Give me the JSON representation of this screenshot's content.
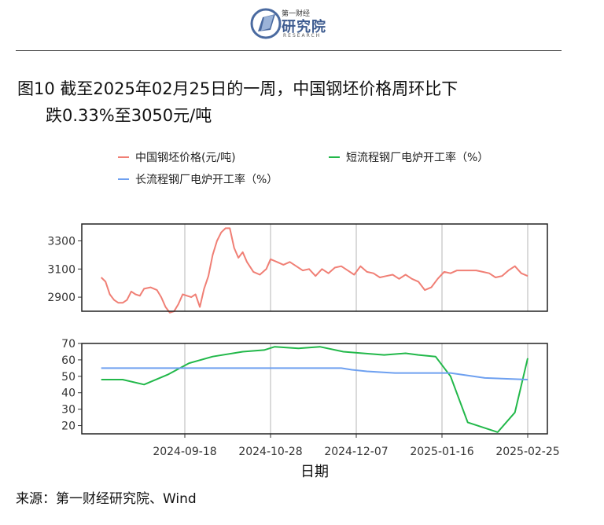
{
  "header": {
    "logo_small": "第一财经",
    "logo_main": "研究院",
    "logo_sub": "RESEARCH"
  },
  "title": {
    "line1": "图10  截至2025年02月25日的一周，中国钢坯价格周环比下",
    "line2": "跌0.33%至3050元/吨"
  },
  "source": "来源：第一财经研究院、Wind",
  "colors": {
    "price": "#f07f75",
    "short": "#22b84a",
    "long": "#6ea0f0"
  },
  "chart_data": {
    "type": "line",
    "xlabel": "日期",
    "x_ticks": [
      "2024-09-18",
      "2024-10-28",
      "2024-12-07",
      "2025-01-16",
      "2025-02-25"
    ],
    "legend": [
      {
        "name": "中国钢坯价格(元/吨)",
        "color": "#f07f75"
      },
      {
        "name": "短流程钢厂电炉开工率（%）",
        "color": "#22b84a"
      },
      {
        "name": "长流程钢厂电炉开工率（%）",
        "color": "#6ea0f0"
      }
    ],
    "panels": [
      {
        "name": "price",
        "yticks": [
          2900,
          3100,
          3300
        ],
        "ylim": [
          2800,
          3420
        ],
        "series": [
          {
            "name": "中国钢坯价格(元/吨)",
            "color": "#f07f75",
            "points": [
              [
                "2024-08-10",
                3040
              ],
              [
                "2024-08-12",
                3010
              ],
              [
                "2024-08-14",
                2920
              ],
              [
                "2024-08-16",
                2880
              ],
              [
                "2024-08-18",
                2860
              ],
              [
                "2024-08-20",
                2860
              ],
              [
                "2024-08-22",
                2880
              ],
              [
                "2024-08-24",
                2940
              ],
              [
                "2024-08-26",
                2920
              ],
              [
                "2024-08-28",
                2910
              ],
              [
                "2024-08-30",
                2960
              ],
              [
                "2024-09-02",
                2970
              ],
              [
                "2024-09-05",
                2950
              ],
              [
                "2024-09-07",
                2900
              ],
              [
                "2024-09-09",
                2830
              ],
              [
                "2024-09-11",
                2790
              ],
              [
                "2024-09-13",
                2800
              ],
              [
                "2024-09-15",
                2850
              ],
              [
                "2024-09-17",
                2920
              ],
              [
                "2024-09-19",
                2910
              ],
              [
                "2024-09-21",
                2900
              ],
              [
                "2024-09-23",
                2920
              ],
              [
                "2024-09-25",
                2830
              ],
              [
                "2024-09-27",
                2960
              ],
              [
                "2024-09-29",
                3050
              ],
              [
                "2024-10-01",
                3200
              ],
              [
                "2024-10-03",
                3300
              ],
              [
                "2024-10-05",
                3360
              ],
              [
                "2024-10-07",
                3390
              ],
              [
                "2024-10-09",
                3390
              ],
              [
                "2024-10-11",
                3250
              ],
              [
                "2024-10-13",
                3180
              ],
              [
                "2024-10-15",
                3220
              ],
              [
                "2024-10-17",
                3150
              ],
              [
                "2024-10-20",
                3080
              ],
              [
                "2024-10-23",
                3060
              ],
              [
                "2024-10-26",
                3100
              ],
              [
                "2024-10-28",
                3170
              ],
              [
                "2024-10-31",
                3150
              ],
              [
                "2024-11-03",
                3130
              ],
              [
                "2024-11-06",
                3150
              ],
              [
                "2024-11-09",
                3120
              ],
              [
                "2024-11-12",
                3090
              ],
              [
                "2024-11-15",
                3100
              ],
              [
                "2024-11-18",
                3050
              ],
              [
                "2024-11-21",
                3100
              ],
              [
                "2024-11-24",
                3070
              ],
              [
                "2024-11-27",
                3110
              ],
              [
                "2024-11-30",
                3120
              ],
              [
                "2024-12-03",
                3090
              ],
              [
                "2024-12-06",
                3060
              ],
              [
                "2024-12-09",
                3120
              ],
              [
                "2024-12-12",
                3080
              ],
              [
                "2024-12-15",
                3070
              ],
              [
                "2024-12-18",
                3040
              ],
              [
                "2024-12-21",
                3050
              ],
              [
                "2024-12-24",
                3060
              ],
              [
                "2024-12-27",
                3030
              ],
              [
                "2024-12-30",
                3060
              ],
              [
                "2025-01-02",
                3030
              ],
              [
                "2025-01-05",
                3010
              ],
              [
                "2025-01-08",
                2950
              ],
              [
                "2025-01-11",
                2970
              ],
              [
                "2025-01-14",
                3030
              ],
              [
                "2025-01-17",
                3080
              ],
              [
                "2025-01-20",
                3070
              ],
              [
                "2025-01-23",
                3090
              ],
              [
                "2025-01-26",
                3090
              ],
              [
                "2025-01-29",
                3090
              ],
              [
                "2025-02-01",
                3090
              ],
              [
                "2025-02-04",
                3080
              ],
              [
                "2025-02-07",
                3070
              ],
              [
                "2025-02-10",
                3040
              ],
              [
                "2025-02-13",
                3050
              ],
              [
                "2025-02-16",
                3090
              ],
              [
                "2025-02-19",
                3120
              ],
              [
                "2025-02-22",
                3070
              ],
              [
                "2025-02-25",
                3050
              ]
            ]
          }
        ]
      },
      {
        "name": "rates",
        "yticks": [
          20,
          30,
          40,
          50,
          60,
          70
        ],
        "ylim": [
          15,
          70
        ],
        "series": [
          {
            "name": "短流程钢厂电炉开工率（%）",
            "color": "#22b84a",
            "points": [
              [
                "2024-08-10",
                48
              ],
              [
                "2024-08-20",
                48
              ],
              [
                "2024-08-30",
                45
              ],
              [
                "2024-09-10",
                51
              ],
              [
                "2024-09-20",
                58
              ],
              [
                "2024-10-01",
                62
              ],
              [
                "2024-10-15",
                65
              ],
              [
                "2024-10-25",
                66
              ],
              [
                "2024-10-30",
                68
              ],
              [
                "2024-11-10",
                67
              ],
              [
                "2024-11-20",
                68
              ],
              [
                "2024-12-01",
                65
              ],
              [
                "2024-12-10",
                64
              ],
              [
                "2024-12-20",
                63
              ],
              [
                "2024-12-30",
                64
              ],
              [
                "2025-01-05",
                63
              ],
              [
                "2025-01-13",
                62
              ],
              [
                "2025-01-20",
                50
              ],
              [
                "2025-01-28",
                22
              ],
              [
                "2025-02-11",
                16
              ],
              [
                "2025-02-19",
                28
              ],
              [
                "2025-02-25",
                61
              ]
            ]
          },
          {
            "name": "长流程钢厂电炉开工率（%）",
            "color": "#6ea0f0",
            "points": [
              [
                "2024-08-10",
                55
              ],
              [
                "2024-10-28",
                55
              ],
              [
                "2024-11-30",
                55
              ],
              [
                "2024-12-05",
                54
              ],
              [
                "2024-12-12",
                53
              ],
              [
                "2024-12-25",
                52
              ],
              [
                "2025-01-20",
                52
              ],
              [
                "2025-02-05",
                49
              ],
              [
                "2025-02-25",
                48
              ]
            ]
          }
        ]
      }
    ]
  }
}
